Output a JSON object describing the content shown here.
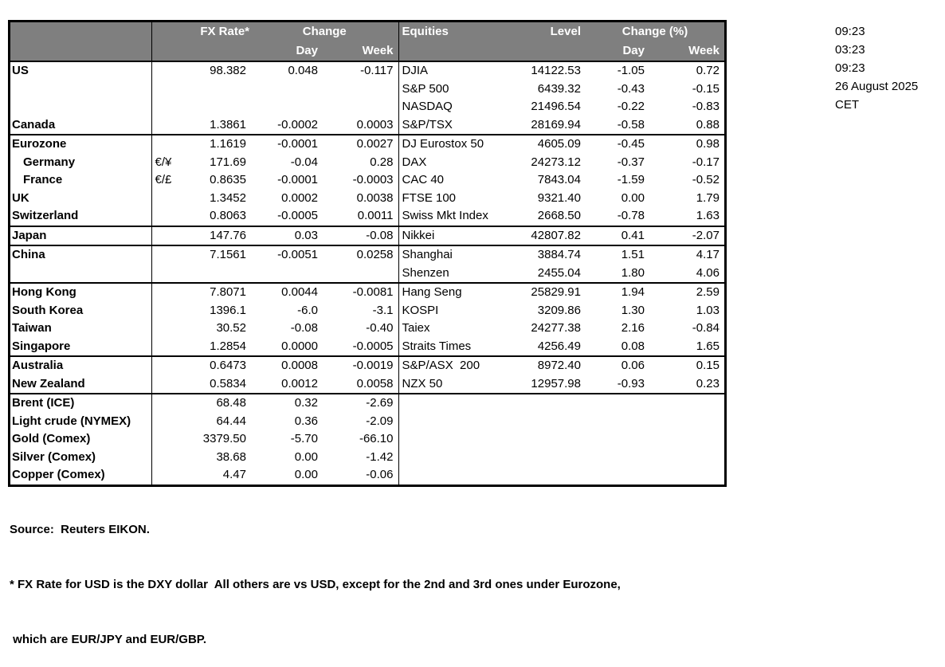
{
  "colors": {
    "header_bg": "#7f7f7f",
    "header_text": "#ffffff",
    "border": "#000000",
    "background": "#ffffff"
  },
  "headers": {
    "fx_rate": "FX Rate*",
    "change": "Change",
    "day": "Day",
    "week": "Week",
    "equities": "Equities",
    "level": "Level",
    "change_pct": "Change (%)",
    "day2": "Day",
    "week2": "Week"
  },
  "rows": [
    {
      "sep": false,
      "left": {
        "label": "US",
        "pair": "",
        "fx": "98.382",
        "day": "0.048",
        "week": "-0.117",
        "indent": false
      },
      "right": {
        "label": "DJIA",
        "level": "14122.53",
        "day": "-1.05",
        "week": "0.72"
      }
    },
    {
      "sep": false,
      "left": {
        "label": "",
        "pair": "",
        "fx": "",
        "day": "",
        "week": "",
        "indent": false
      },
      "right": {
        "label": "S&P 500",
        "level": "6439.32",
        "day": "-0.43",
        "week": "-0.15"
      }
    },
    {
      "sep": false,
      "left": {
        "label": "",
        "pair": "",
        "fx": "",
        "day": "",
        "week": "",
        "indent": false
      },
      "right": {
        "label": "NASDAQ",
        "level": "21496.54",
        "day": "-0.22",
        "week": "-0.83"
      }
    },
    {
      "sep": false,
      "left": {
        "label": "Canada",
        "pair": "",
        "fx": "1.3861",
        "day": "-0.0002",
        "week": "0.0003",
        "indent": false
      },
      "right": {
        "label": "S&P/TSX",
        "level": "28169.94",
        "day": "-0.58",
        "week": "0.88"
      }
    },
    {
      "sep": true,
      "left": {
        "label": "Eurozone",
        "pair": "",
        "fx": "1.1619",
        "day": "-0.0001",
        "week": "0.0027",
        "indent": false
      },
      "right": {
        "label": "DJ Eurostox 50",
        "level": "4605.09",
        "day": "-0.45",
        "week": "0.98"
      }
    },
    {
      "sep": false,
      "left": {
        "label": "Germany",
        "pair": "€/¥",
        "fx": "171.69",
        "day": "-0.04",
        "week": "0.28",
        "indent": true
      },
      "right": {
        "label": "DAX",
        "level": "24273.12",
        "day": "-0.37",
        "week": "-0.17"
      }
    },
    {
      "sep": false,
      "left": {
        "label": "France",
        "pair": "€/£",
        "fx": "0.8635",
        "day": "-0.0001",
        "week": "-0.0003",
        "indent": true
      },
      "right": {
        "label": "CAC 40",
        "level": "7843.04",
        "day": "-1.59",
        "week": "-0.52"
      }
    },
    {
      "sep": false,
      "left": {
        "label": "UK",
        "pair": "",
        "fx": "1.3452",
        "day": "0.0002",
        "week": "0.0038",
        "indent": false
      },
      "right": {
        "label": "FTSE 100",
        "level": "9321.40",
        "day": "0.00",
        "week": "1.79"
      }
    },
    {
      "sep": false,
      "left": {
        "label": "Switzerland",
        "pair": "",
        "fx": "0.8063",
        "day": "-0.0005",
        "week": "0.0011",
        "indent": false
      },
      "right": {
        "label": "Swiss Mkt Index",
        "level": "2668.50",
        "day": "-0.78",
        "week": "1.63"
      }
    },
    {
      "sep": true,
      "left": {
        "label": "Japan",
        "pair": "",
        "fx": "147.76",
        "day": "0.03",
        "week": "-0.08",
        "indent": false
      },
      "right": {
        "label": "Nikkei",
        "level": "42807.82",
        "day": "0.41",
        "week": "-2.07"
      }
    },
    {
      "sep": true,
      "left": {
        "label": "China",
        "pair": "",
        "fx": "7.1561",
        "day": "-0.0051",
        "week": "0.0258",
        "indent": false
      },
      "right": {
        "label": "Shanghai",
        "level": "3884.74",
        "day": "1.51",
        "week": "4.17"
      }
    },
    {
      "sep": false,
      "left": {
        "label": "",
        "pair": "",
        "fx": "",
        "day": "",
        "week": "",
        "indent": false
      },
      "right": {
        "label": "Shenzen",
        "level": "2455.04",
        "day": "1.80",
        "week": "4.06"
      }
    },
    {
      "sep": true,
      "left": {
        "label": "Hong Kong",
        "pair": "",
        "fx": "7.8071",
        "day": "0.0044",
        "week": "-0.0081",
        "indent": false
      },
      "right": {
        "label": "Hang Seng",
        "level": "25829.91",
        "day": "1.94",
        "week": "2.59"
      }
    },
    {
      "sep": false,
      "left": {
        "label": "South Korea",
        "pair": "",
        "fx": "1396.1",
        "day": "-6.0",
        "week": "-3.1",
        "indent": false
      },
      "right": {
        "label": "KOSPI",
        "level": "3209.86",
        "day": "1.30",
        "week": "1.03"
      }
    },
    {
      "sep": false,
      "left": {
        "label": "Taiwan",
        "pair": "",
        "fx": "30.52",
        "day": "-0.08",
        "week": "-0.40",
        "indent": false
      },
      "right": {
        "label": "Taiex",
        "level": "24277.38",
        "day": "2.16",
        "week": "-0.84"
      }
    },
    {
      "sep": false,
      "left": {
        "label": "Singapore",
        "pair": "",
        "fx": "1.2854",
        "day": "0.0000",
        "week": "-0.0005",
        "indent": false
      },
      "right": {
        "label": "Straits Times",
        "level": "4256.49",
        "day": "0.08",
        "week": "1.65"
      }
    },
    {
      "sep": true,
      "left": {
        "label": "Australia",
        "pair": "",
        "fx": "0.6473",
        "day": "0.0008",
        "week": "-0.0019",
        "indent": false
      },
      "right": {
        "label": "S&P/ASX  200",
        "level": "8972.40",
        "day": "0.06",
        "week": "0.15"
      }
    },
    {
      "sep": false,
      "left": {
        "label": "New Zealand",
        "pair": "",
        "fx": "0.5834",
        "day": "0.0012",
        "week": "0.0058",
        "indent": false
      },
      "right": {
        "label": "NZX 50",
        "level": "12957.98",
        "day": "-0.93",
        "week": "0.23"
      }
    },
    {
      "sep": true,
      "left": {
        "label": "Brent (ICE)",
        "pair": "",
        "fx": "68.48",
        "day": "0.32",
        "week": "-2.69",
        "indent": false
      },
      "right": {
        "label": "",
        "level": "",
        "day": "",
        "week": ""
      }
    },
    {
      "sep": false,
      "left": {
        "label": "Light crude (NYMEX)",
        "pair": "",
        "fx": "64.44",
        "day": "0.36",
        "week": "-2.09",
        "indent": false
      },
      "right": {
        "label": "",
        "level": "",
        "day": "",
        "week": ""
      }
    },
    {
      "sep": false,
      "left": {
        "label": "Gold (Comex)",
        "pair": "",
        "fx": "3379.50",
        "day": "-5.70",
        "week": "-66.10",
        "indent": false
      },
      "right": {
        "label": "",
        "level": "",
        "day": "",
        "week": ""
      }
    },
    {
      "sep": false,
      "left": {
        "label": "Silver (Comex)",
        "pair": "",
        "fx": "38.68",
        "day": "0.00",
        "week": "-1.42",
        "indent": false
      },
      "right": {
        "label": "",
        "level": "",
        "day": "",
        "week": ""
      }
    },
    {
      "sep": false,
      "left": {
        "label": "Copper (Comex)",
        "pair": "",
        "fx": "4.47",
        "day": "0.00",
        "week": "-0.06",
        "indent": false
      },
      "right": {
        "label": "",
        "level": "",
        "day": "",
        "week": ""
      }
    }
  ],
  "timestamps": [
    "09:23",
    "03:23",
    "09:23",
    "26 August 2025",
    "CET"
  ],
  "footer": {
    "line1": "Source:  Reuters EIKON.",
    "line2": "* FX Rate for USD is the DXY dollar  All others are vs USD, except for the 2nd and 3rd ones under Eurozone,",
    "line3": " which are EUR/JPY and EUR/GBP."
  }
}
